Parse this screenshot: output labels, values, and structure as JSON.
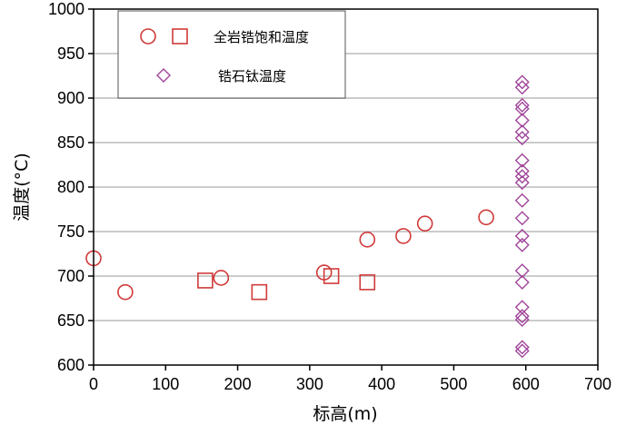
{
  "chart_data": {
    "type": "scatter",
    "xlabel": "标高(m)",
    "ylabel": "温度(°C)",
    "xlim": [
      0,
      700
    ],
    "ylim": [
      600,
      1000
    ],
    "xticks": [
      0,
      100,
      200,
      300,
      400,
      500,
      600,
      700
    ],
    "yticks": [
      600,
      650,
      700,
      750,
      800,
      850,
      900,
      950,
      1000
    ],
    "grid": "horizontal",
    "legend_position": "top-left",
    "colors": {
      "saturation": "#d03a3a",
      "titanium": "#a0449a",
      "grid": "#cccccc",
      "axis": "#000000"
    },
    "legend": [
      {
        "label": "全岩锆饱和温度",
        "markers": [
          "circle",
          "square"
        ],
        "color": "#d03a3a"
      },
      {
        "label": "锆石钛温度",
        "markers": [
          "diamond"
        ],
        "color": "#a0449a"
      }
    ],
    "series": [
      {
        "name": "全岩锆饱和温度",
        "marker": "circle",
        "color": "#d03a3a",
        "points": [
          [
            0,
            720
          ],
          [
            44,
            682
          ],
          [
            177,
            698
          ],
          [
            320,
            704
          ],
          [
            380,
            741
          ],
          [
            430,
            745
          ],
          [
            460,
            759
          ],
          [
            545,
            766
          ]
        ]
      },
      {
        "name": "全岩锆饱和温度",
        "marker": "square",
        "color": "#d03a3a",
        "points": [
          [
            155,
            695
          ],
          [
            230,
            682
          ],
          [
            330,
            700
          ],
          [
            380,
            693
          ]
        ]
      },
      {
        "name": "锆石钛温度",
        "marker": "diamond",
        "color": "#a0449a",
        "points": [
          [
            595,
            918
          ],
          [
            595,
            912
          ],
          [
            595,
            892
          ],
          [
            595,
            888
          ],
          [
            595,
            875
          ],
          [
            595,
            862
          ],
          [
            595,
            855
          ],
          [
            595,
            830
          ],
          [
            595,
            818
          ],
          [
            595,
            812
          ],
          [
            595,
            805
          ],
          [
            595,
            785
          ],
          [
            595,
            765
          ],
          [
            595,
            745
          ],
          [
            595,
            735
          ],
          [
            595,
            706
          ],
          [
            595,
            693
          ],
          [
            595,
            665
          ],
          [
            595,
            655
          ],
          [
            595,
            651
          ],
          [
            595,
            620
          ],
          [
            595,
            616
          ]
        ]
      }
    ]
  }
}
